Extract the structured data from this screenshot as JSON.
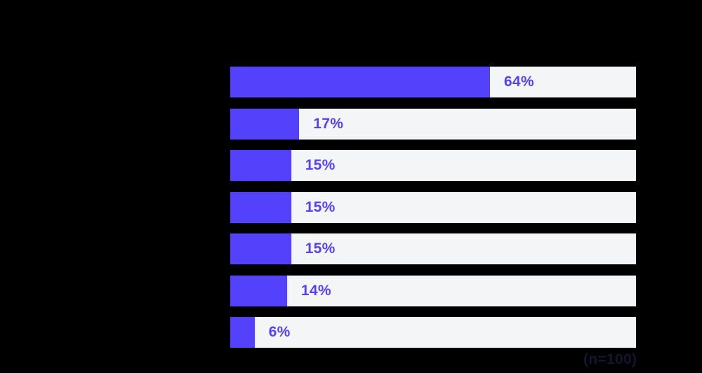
{
  "background_color": "#000000",
  "chart_data": {
    "type": "bar",
    "orientation": "horizontal",
    "values": [
      64,
      17,
      15,
      15,
      15,
      14,
      6
    ],
    "labels": [
      "64%",
      "17%",
      "15%",
      "15%",
      "15%",
      "14%",
      "6%"
    ],
    "value_range": [
      0,
      100
    ],
    "grid": false,
    "legend": "none",
    "bar_fill_color": "#5441FB",
    "bar_track_color": "#F4F5F7",
    "value_label_color": "#5441FB",
    "caption": "(n=100)",
    "caption_color": "#15152F"
  }
}
